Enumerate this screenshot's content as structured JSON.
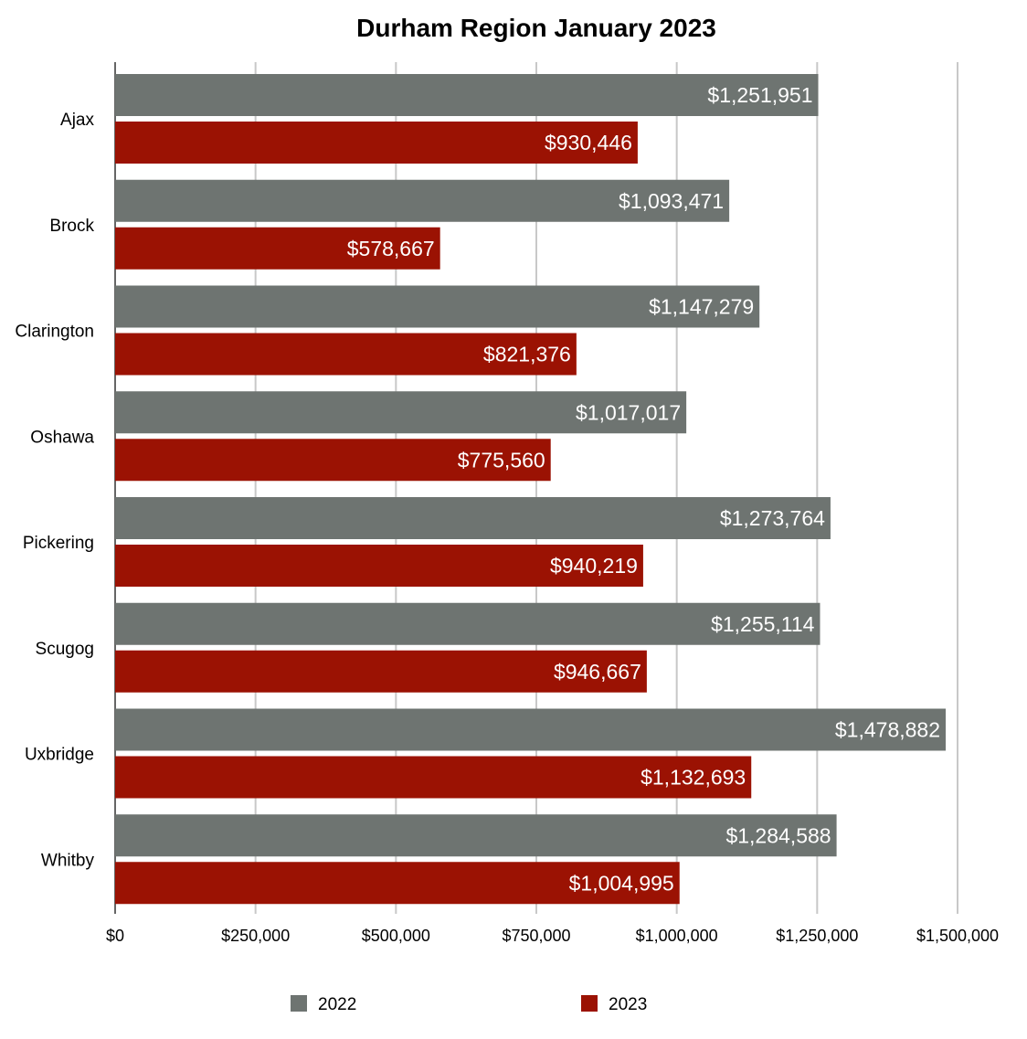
{
  "chart_data": {
    "type": "bar",
    "orientation": "horizontal",
    "title": "Durham Region January 2023",
    "categories": [
      "Ajax",
      "Brock",
      "Clarington",
      "Oshawa",
      "Pickering",
      "Scugog",
      "Uxbridge",
      "Whitby"
    ],
    "series": [
      {
        "name": "2022",
        "color": "#6e7471",
        "values": [
          1251951,
          1093471,
          1147279,
          1017017,
          1273764,
          1255114,
          1478882,
          1284588
        ],
        "labels": [
          "$1,251,951",
          "$1,093,471",
          "$1,147,279",
          "$1,017,017",
          "$1,273,764",
          "$1,255,114",
          "$1,478,882",
          "$1,284,588"
        ]
      },
      {
        "name": "2023",
        "color": "#9b1203",
        "values": [
          930446,
          578667,
          821376,
          775560,
          940219,
          946667,
          1132693,
          1004995
        ],
        "labels": [
          "$930,446",
          "$578,667",
          "$821,376",
          "$775,560",
          "$940,219",
          "$946,667",
          "$1,132,693",
          "$1,004,995"
        ]
      }
    ],
    "xlim": [
      0,
      1500000
    ],
    "x_ticks": [
      0,
      250000,
      500000,
      750000,
      1000000,
      1250000,
      1500000
    ],
    "x_tick_labels": [
      "$0",
      "$250,000",
      "$500,000",
      "$750,000",
      "$1,000,000",
      "$1,250,000",
      "$1,500,000"
    ],
    "grid": true,
    "legend_position": "bottom"
  }
}
